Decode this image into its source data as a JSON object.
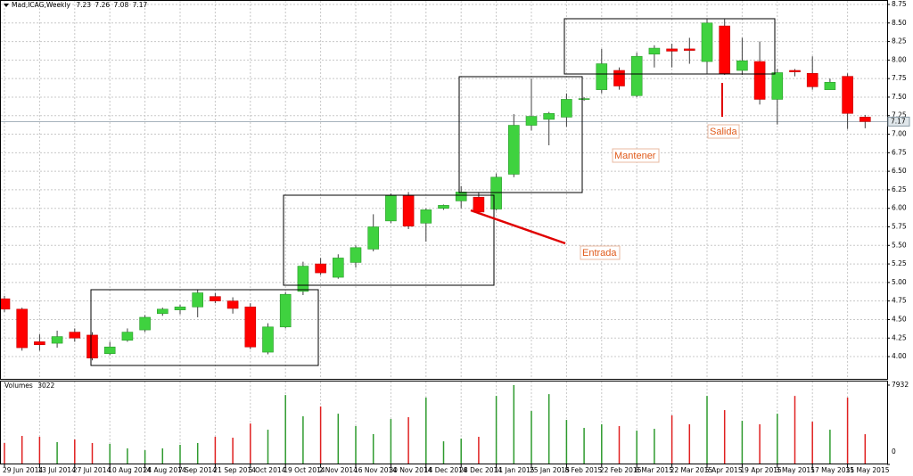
{
  "chart_data": {
    "type": "candlestick",
    "title": "Mad,ICAG,Weekly",
    "categories": [
      "29 Jun 2014",
      null,
      "13 Jul 2014",
      null,
      "27 Jul 2014",
      null,
      "10 Aug 2014",
      null,
      "24 Aug 2014",
      null,
      "7 Sep 2014",
      null,
      "21 Sep 2014",
      null,
      "5 Oct 2014",
      null,
      "19 Oct 2014",
      null,
      "2 Nov 2014",
      null,
      "16 Nov 2014",
      null,
      "30 Nov 2014",
      null,
      "14 Dec 2014",
      null,
      "28 Dec 2014",
      null,
      "11 Jan 2015",
      null,
      "25 Jan 2015",
      null,
      "8 Feb 2015",
      null,
      "22 Feb 2015",
      null,
      "8 Mar 2015",
      null,
      "22 Mar 2015",
      null,
      "5 Apr 2015",
      null,
      "19 Apr 2015",
      null,
      "3 May 2015",
      null,
      "17 May 2015",
      null,
      "31 May 2015",
      null
    ],
    "open": [
      4.78,
      4.64,
      4.2,
      4.18,
      4.33,
      4.29,
      4.04,
      4.22,
      4.36,
      4.58,
      4.63,
      4.67,
      4.81,
      4.75,
      4.67,
      4.06,
      4.4,
      4.88,
      5.25,
      5.07,
      5.27,
      5.45,
      5.83,
      6.17,
      5.8,
      6.0,
      6.1,
      6.15,
      5.99,
      6.46,
      7.12,
      7.2,
      7.23,
      7.47,
      7.6,
      7.86,
      7.52,
      8.08,
      8.15,
      8.15,
      7.98,
      8.46,
      7.86,
      7.98,
      7.47,
      7.86,
      7.82,
      7.6,
      7.78,
      7.23
    ],
    "high": [
      4.82,
      4.66,
      4.3,
      4.35,
      4.38,
      4.33,
      4.2,
      4.38,
      4.56,
      4.66,
      4.7,
      4.9,
      4.86,
      4.8,
      4.72,
      4.45,
      4.87,
      5.28,
      5.33,
      5.38,
      5.5,
      5.92,
      6.2,
      6.22,
      6.0,
      6.05,
      6.3,
      6.22,
      6.47,
      7.27,
      7.75,
      7.3,
      7.55,
      7.5,
      8.15,
      7.9,
      8.1,
      8.2,
      8.22,
      8.3,
      8.55,
      8.55,
      8.3,
      8.25,
      7.88,
      7.88,
      8.05,
      7.75,
      7.82,
      7.26
    ],
    "low": [
      4.6,
      4.08,
      4.08,
      4.12,
      4.2,
      3.95,
      4.02,
      4.2,
      4.33,
      4.55,
      4.57,
      4.53,
      4.72,
      4.58,
      4.1,
      4.03,
      4.38,
      4.83,
      5.1,
      5.05,
      5.2,
      5.42,
      5.8,
      5.72,
      5.55,
      5.98,
      6.0,
      5.92,
      5.97,
      6.42,
      7.05,
      6.85,
      7.1,
      7.45,
      7.55,
      7.6,
      7.5,
      7.9,
      7.9,
      7.95,
      7.82,
      7.8,
      7.8,
      7.4,
      7.13,
      7.78,
      7.6,
      7.6,
      7.07,
      7.08
    ],
    "close": [
      4.64,
      4.12,
      4.16,
      4.27,
      4.25,
      3.98,
      4.13,
      4.33,
      4.53,
      4.64,
      4.67,
      4.86,
      4.75,
      4.65,
      4.13,
      4.4,
      4.84,
      5.22,
      5.13,
      5.33,
      5.47,
      5.75,
      6.17,
      5.76,
      5.98,
      6.04,
      6.22,
      5.95,
      6.42,
      7.12,
      7.24,
      7.28,
      7.47,
      7.48,
      7.95,
      7.65,
      8.05,
      8.16,
      8.12,
      8.13,
      8.5,
      7.82,
      7.99,
      7.47,
      7.83,
      7.84,
      7.64,
      7.7,
      7.28,
      7.17
    ],
    "volume": [
      2140,
      2850,
      2760,
      2230,
      2490,
      2140,
      2050,
      1600,
      1420,
      1600,
      1960,
      2140,
      2760,
      2670,
      4090,
      3470,
      6940,
      4810,
      5790,
      5070,
      3830,
      3030,
      4540,
      4720,
      6680,
      2310,
      2580,
      2760,
      6850,
      7932,
      5340,
      7030,
      4450,
      3650,
      4010,
      3830,
      3380,
      3560,
      4900,
      4010,
      6850,
      5430,
      4360,
      4010,
      5070,
      6850,
      4270,
      3470,
      6680,
      3022
    ],
    "up_color": "#3fd23f",
    "down_color": "#ff0000",
    "volume_up_color": "#2e9a2e",
    "volume_down_color": "#e02020",
    "ylim": [
      3.7,
      8.81
    ],
    "yticks": [
      {
        "value": 4,
        "label": "4.00"
      },
      4.25,
      {
        "value": 4.5,
        "label": "4.50"
      },
      4.75,
      {
        "value": 5,
        "label": "5.00"
      },
      5.25,
      {
        "value": 5.5,
        "label": "5.50"
      },
      5.75,
      {
        "value": 6,
        "label": "6.00"
      },
      6.25,
      {
        "value": 6.5,
        "label": "6.50"
      },
      6.75,
      {
        "value": 7,
        "label": "7.00"
      },
      7.25,
      {
        "value": 7.5,
        "label": "7.50"
      },
      7.75,
      {
        "value": 8,
        "label": "8.00"
      },
      8.25,
      {
        "value": 8.5,
        "label": "8.50"
      },
      8.75
    ],
    "volume_label": "Volumes",
    "volume_ylim": [
      0,
      7932
    ],
    "volume_ticks": [
      0,
      7932
    ],
    "grid": true,
    "annotations": [
      "Entrada",
      "Mantener",
      "Salida"
    ]
  }
}
